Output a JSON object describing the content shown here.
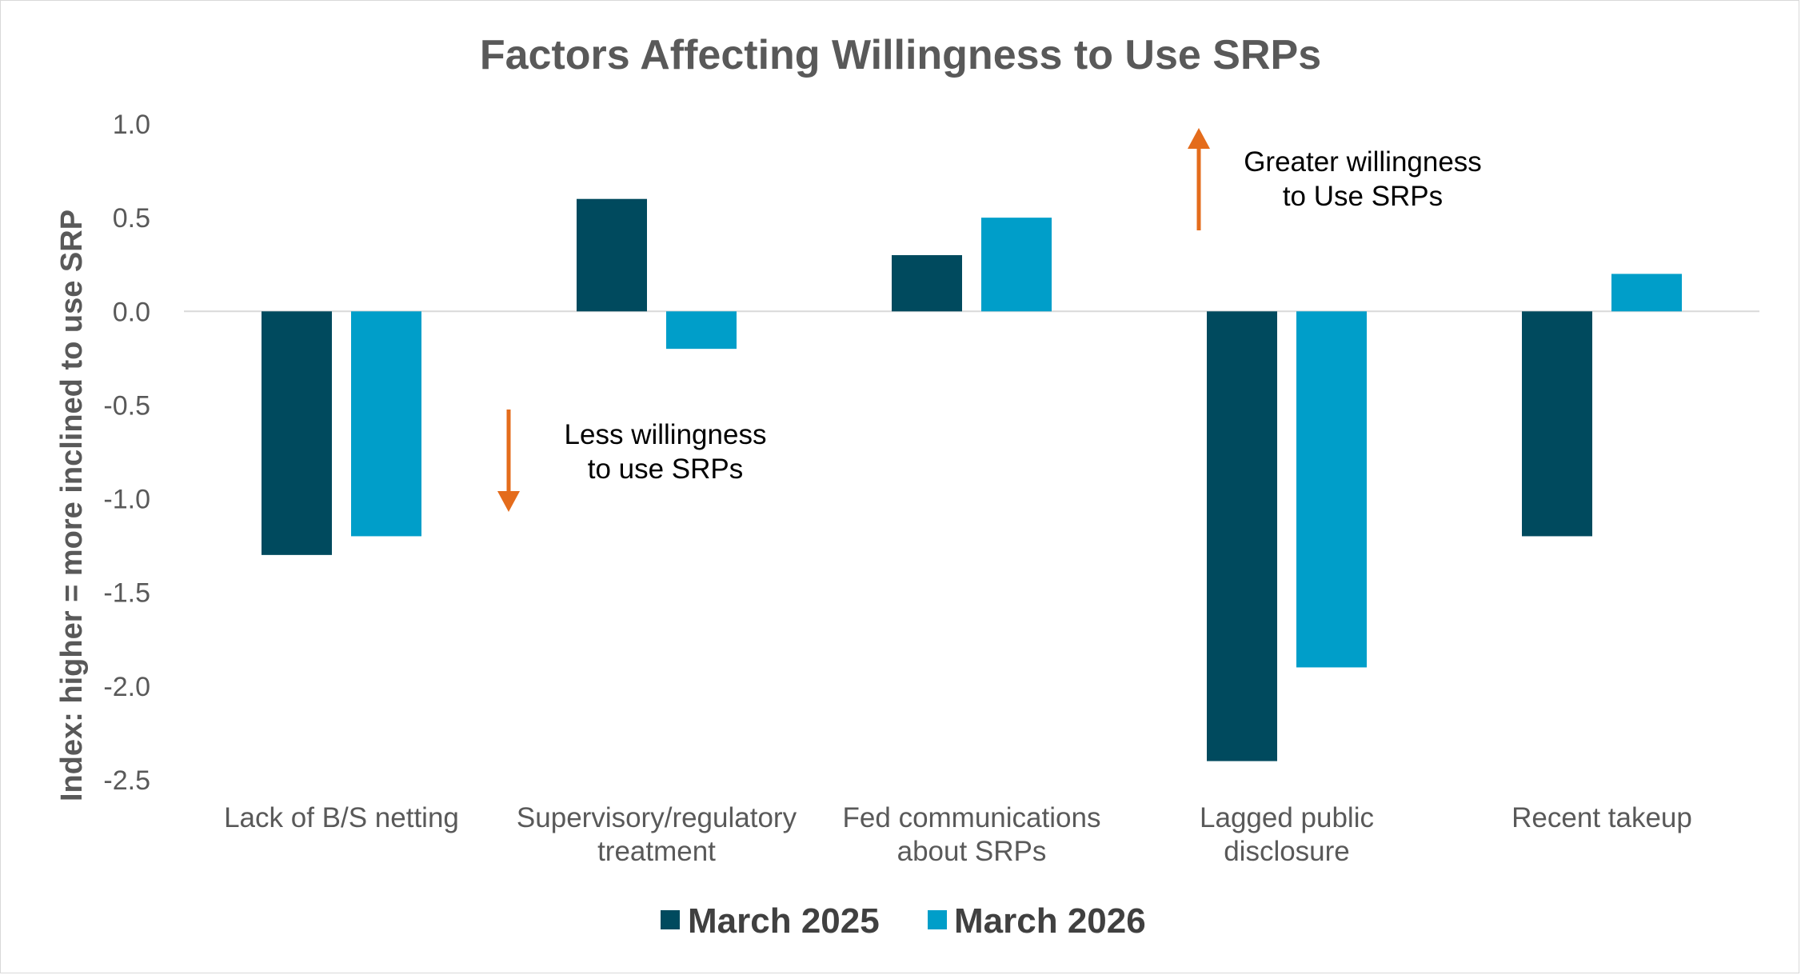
{
  "chart_data": {
    "type": "bar",
    "title": "Factors Affecting Willingness to Use SRPs",
    "ylabel": "Index: higher = more inclined to use SRP",
    "xlabel": "",
    "ylim": [
      -2.5,
      1.0
    ],
    "yticks": [
      1.0,
      0.5,
      0.0,
      -0.5,
      -1.0,
      -1.5,
      -2.0,
      -2.5
    ],
    "ytick_labels": [
      "1.0",
      "0.5",
      "0.0",
      "-0.5",
      "-1.0",
      "-1.5",
      "-2.0",
      "-2.5"
    ],
    "grid": false,
    "legend_position": "bottom",
    "categories": [
      [
        "Lack of B/S netting"
      ],
      [
        "Supervisory/regulatory",
        "treatment"
      ],
      [
        "Fed communications",
        "about SRPs"
      ],
      [
        "Lagged public",
        "disclosure"
      ],
      [
        "Recent takeup"
      ]
    ],
    "series": [
      {
        "name": "March 2025",
        "color": "#004a5e",
        "values": [
          -1.3,
          0.6,
          0.3,
          -2.4,
          -1.2
        ]
      },
      {
        "name": "March 2026",
        "color": "#009ec9",
        "values": [
          -1.2,
          -0.2,
          0.5,
          -1.9,
          0.2
        ]
      }
    ],
    "annotations": [
      {
        "lines": [
          "Less willingness",
          "to use SRPs"
        ],
        "arrow": "down",
        "color": "#e46c1c"
      },
      {
        "lines": [
          "Greater willingness",
          "to Use SRPs"
        ],
        "arrow": "up",
        "color": "#e46c1c"
      }
    ]
  }
}
